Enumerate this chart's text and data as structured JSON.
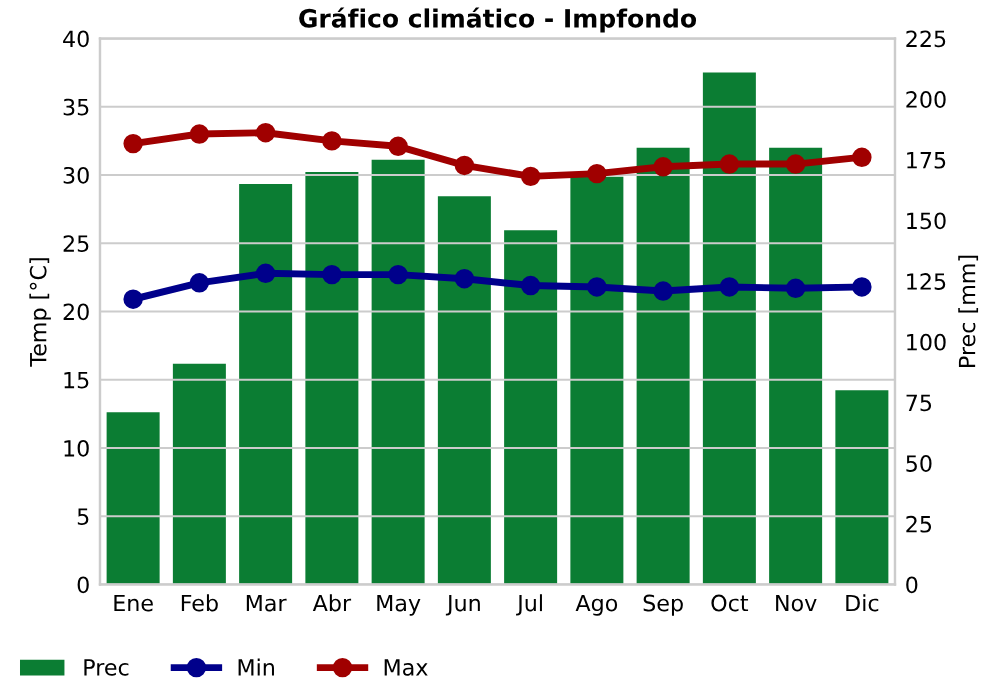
{
  "chart_data": {
    "type": "bar",
    "title": "Gráfico climático - Impfondo",
    "ylabel": "Temp [°C]",
    "y2label": "Prec [mm]",
    "categories": [
      "Ene",
      "Feb",
      "Mar",
      "Abr",
      "May",
      "Jun",
      "Jul",
      "Ago",
      "Sep",
      "Oct",
      "Nov",
      "Dic"
    ],
    "series": [
      {
        "name": "Prec",
        "axis": "y2",
        "color": "#0b7d33",
        "values": [
          71,
          91,
          165,
          170,
          175,
          160,
          146,
          168,
          180,
          211,
          180,
          80
        ]
      },
      {
        "name": "Min",
        "type": "line",
        "axis": "y",
        "color": "#00008b",
        "values": [
          20.9,
          22.1,
          22.8,
          22.7,
          22.7,
          22.4,
          21.9,
          21.8,
          21.5,
          21.8,
          21.7,
          21.8
        ]
      },
      {
        "name": "Max",
        "type": "line",
        "axis": "y",
        "color": "#a00000",
        "values": [
          32.3,
          33.0,
          33.1,
          32.5,
          32.1,
          30.7,
          29.9,
          30.1,
          30.6,
          30.8,
          30.8,
          31.3
        ]
      }
    ],
    "ylim": [
      0,
      40
    ],
    "yticks": [
      0,
      5,
      10,
      15,
      20,
      25,
      30,
      35,
      40
    ],
    "y2lim": [
      0,
      225
    ],
    "y2ticks": [
      0,
      25,
      50,
      75,
      100,
      125,
      150,
      175,
      200,
      225
    ],
    "grid": "y",
    "legend": "bottom",
    "marker": "circle",
    "line_style": "solid"
  }
}
